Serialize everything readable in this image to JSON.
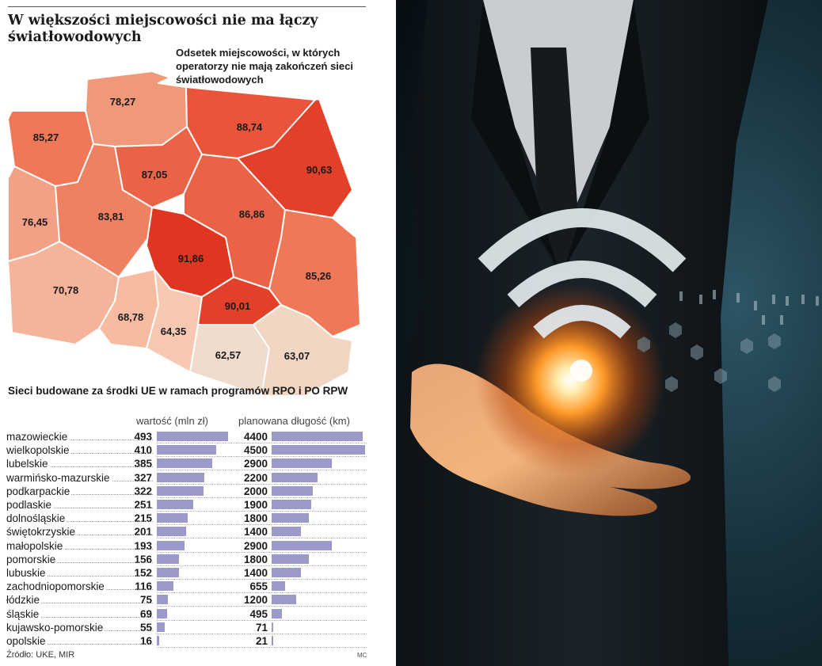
{
  "title": "W większości miejscowości nie ma łączy światłowodowych",
  "map_caption": "Odsetek miejscowości, w których operatorzy nie mają zakończeń sieci światłowodowych",
  "chart_data": [
    {
      "type": "choropleth",
      "title": "Odsetek miejscowości, w których operatorzy nie mają zakończeń sieci światłowodowych",
      "regions": [
        {
          "value": "78,27",
          "color": "#f0987a"
        },
        {
          "value": "88,74",
          "color": "#e9543a"
        },
        {
          "value": "85,27",
          "color": "#ee7858"
        },
        {
          "value": "87,05",
          "color": "#ea6346"
        },
        {
          "value": "90,63",
          "color": "#e3402a"
        },
        {
          "value": "76,45",
          "color": "#f3a186"
        },
        {
          "value": "83,81",
          "color": "#ef8163"
        },
        {
          "value": "86,86",
          "color": "#ea6346"
        },
        {
          "value": "91,86",
          "color": "#e03520"
        },
        {
          "value": "70,78",
          "color": "#f5b499"
        },
        {
          "value": "85,26",
          "color": "#ee7858"
        },
        {
          "value": "68,78",
          "color": "#f6bba1"
        },
        {
          "value": "64,35",
          "color": "#f7c9b3"
        },
        {
          "value": "90,01",
          "color": "#e3402a"
        },
        {
          "value": "62,57",
          "color": "#f0dccd"
        },
        {
          "value": "63,07",
          "color": "#f1d6c3"
        }
      ]
    },
    {
      "type": "bar",
      "title": "Sieci budowane za środki UE w ramach programów RPO i PO RPW",
      "categories": [
        "mazowieckie",
        "wielkopolskie",
        "lubelskie",
        "warmińsko-mazurskie",
        "podkarpackie",
        "podlaskie",
        "dolnośląskie",
        "świętokrzyskie",
        "małopolskie",
        "pomorskie",
        "lubuskie",
        "zachodniopomorskie",
        "łódzkie",
        "śląskie",
        "kujawsko-pomorskie",
        "opolskie"
      ],
      "series": [
        {
          "name": "wartość (mln zł)",
          "values": [
            493,
            410,
            385,
            327,
            322,
            251,
            215,
            201,
            193,
            156,
            152,
            116,
            75,
            69,
            55,
            16
          ]
        },
        {
          "name": "planowana długość (km)",
          "values": [
            4400,
            4500,
            2900,
            2200,
            2000,
            1900,
            1800,
            1400,
            2900,
            1800,
            1400,
            655,
            1200,
            495,
            71,
            21
          ]
        }
      ],
      "bar_color": "#9a99c9"
    }
  ],
  "source": "Źródło: UKE, MIR",
  "author": "MC"
}
